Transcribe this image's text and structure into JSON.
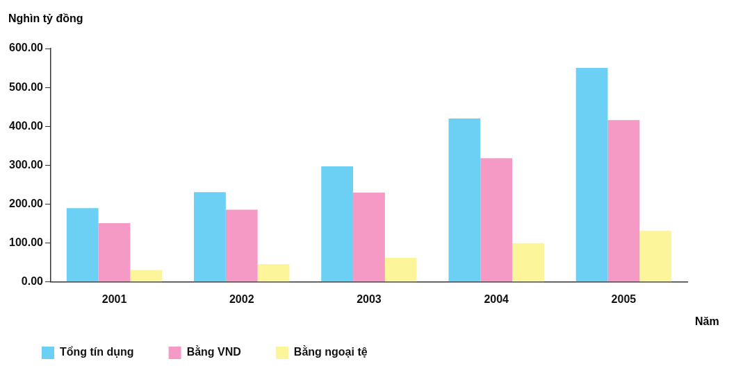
{
  "chart_data": {
    "type": "bar",
    "ylabel": "Nghìn tỷ đồng",
    "xlabel": "Năm",
    "categories": [
      "2001",
      "2002",
      "2003",
      "2004",
      "2005"
    ],
    "series": [
      {
        "name": "Tổng tín dụng",
        "color": "#6ccff4",
        "values": [
          190,
          231,
          297,
          420,
          550
        ]
      },
      {
        "name": "Bằng VND",
        "color": "#f49ac4",
        "values": [
          151,
          186,
          230,
          318,
          416
        ]
      },
      {
        "name": "Bằng ngoại tệ",
        "color": "#fdf59a",
        "values": [
          31,
          46,
          62,
          100,
          132
        ]
      }
    ],
    "ylim": [
      0,
      600
    ],
    "yticks": [
      {
        "value": 0,
        "label": "0.00"
      },
      {
        "value": 100,
        "label": "100.00"
      },
      {
        "value": 200,
        "label": "200.00"
      },
      {
        "value": 300,
        "label": "300.00"
      },
      {
        "value": 400,
        "label": "400.00"
      },
      {
        "value": 500,
        "label": "500.00"
      },
      {
        "value": 600,
        "label": "600.00"
      }
    ],
    "grid": false,
    "legend": "bottom"
  }
}
